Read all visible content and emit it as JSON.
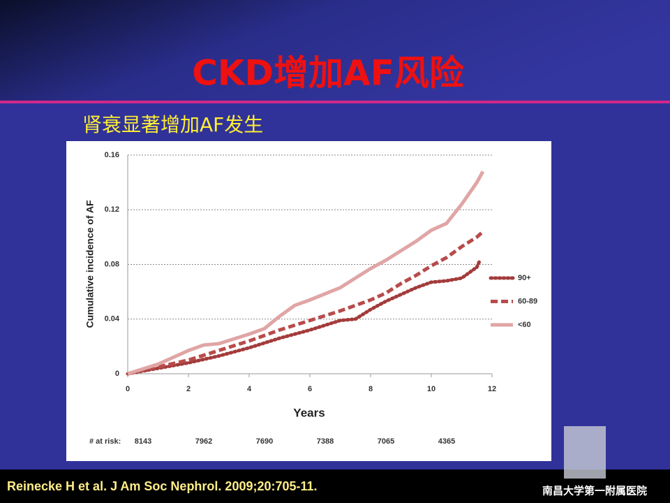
{
  "slide": {
    "title": "CKD增加AF风险",
    "subtitle": "肾衰显著增加AF发生",
    "citation": "Reinecke H et al. J Am Soc Nephrol. 2009;20:705-11.",
    "logo": "南昌大学第一附属医院"
  },
  "chart_data": {
    "type": "line",
    "y_label": "Cumulative incidence of AF",
    "x_label": "Years",
    "xlim": [
      0,
      12
    ],
    "xticks": [
      0,
      2,
      4,
      6,
      8,
      10,
      12
    ],
    "ylim": [
      0,
      0.16
    ],
    "yticks": [
      0,
      0.04,
      0.08,
      0.12,
      0.16
    ],
    "grid": true,
    "legend": "right",
    "series": [
      {
        "name": "90+",
        "color": "#a33b3b",
        "style": "dotted",
        "x": [
          0,
          1,
          2,
          3,
          4,
          5,
          6,
          7,
          7.5,
          8,
          8.5,
          9,
          9.5,
          10,
          10.5,
          11,
          11.5,
          11.6
        ],
        "values": [
          0,
          0.004,
          0.008,
          0.013,
          0.019,
          0.026,
          0.032,
          0.039,
          0.04,
          0.047,
          0.053,
          0.058,
          0.063,
          0.067,
          0.068,
          0.07,
          0.078,
          0.083
        ]
      },
      {
        "name": "60-89",
        "color": "#b84b4b",
        "style": "dashed",
        "x": [
          0,
          1,
          2,
          3,
          4,
          5,
          6,
          7,
          8,
          8.5,
          9,
          9.5,
          10,
          10.5,
          11,
          11.5,
          11.7
        ],
        "values": [
          0,
          0.005,
          0.01,
          0.017,
          0.024,
          0.032,
          0.039,
          0.046,
          0.054,
          0.059,
          0.066,
          0.072,
          0.079,
          0.085,
          0.093,
          0.1,
          0.104
        ]
      },
      {
        "name": "<60",
        "color": "#e0a5a5",
        "style": "solid",
        "x": [
          0,
          1,
          2,
          2.5,
          3,
          4,
          4.5,
          5,
          5.5,
          6,
          7,
          7.5,
          8,
          8.5,
          9,
          9.5,
          10,
          10.5,
          11,
          11.5,
          11.7
        ],
        "values": [
          0,
          0.007,
          0.017,
          0.021,
          0.022,
          0.029,
          0.033,
          0.042,
          0.05,
          0.054,
          0.063,
          0.07,
          0.077,
          0.083,
          0.09,
          0.097,
          0.105,
          0.11,
          0.124,
          0.14,
          0.148
        ]
      }
    ],
    "at_risk": {
      "label": "# at risk:",
      "x": [
        0,
        2,
        4,
        6,
        8,
        10
      ],
      "values": [
        8143,
        7962,
        7690,
        7388,
        7065,
        4365
      ]
    }
  }
}
